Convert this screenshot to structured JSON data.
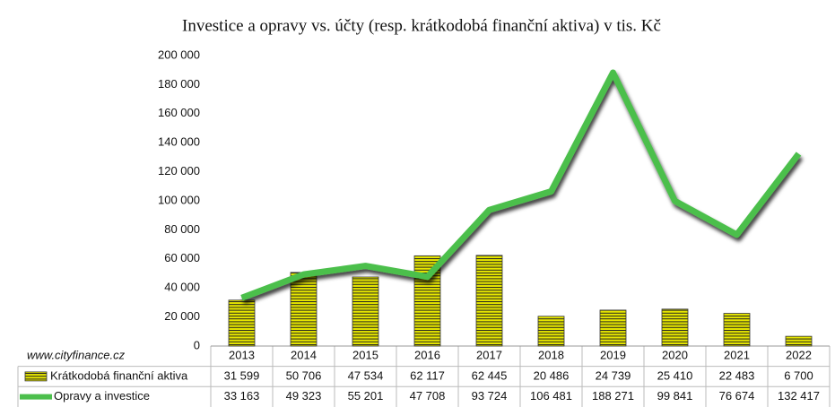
{
  "chart_data": {
    "type": "combo",
    "title": "Investice a opravy vs. účty (resp. krátkodobá finanční aktiva) v tis. Kč",
    "annotation": "www.cityfinance.cz",
    "categories": [
      "2013",
      "2014",
      "2015",
      "2016",
      "2017",
      "2018",
      "2019",
      "2020",
      "2021",
      "2022"
    ],
    "series": [
      {
        "name": "Krátkodobá finanční aktiva",
        "type": "bar",
        "color": "#e6e600",
        "values": [
          31599,
          50706,
          47534,
          62117,
          62445,
          20486,
          24739,
          25410,
          22483,
          6700
        ],
        "value_labels": [
          "31 599",
          "50 706",
          "47 534",
          "62 117",
          "62 445",
          "20 486",
          "24 739",
          "25 410",
          "22 483",
          "6 700"
        ]
      },
      {
        "name": "Opravy a investice",
        "type": "line",
        "color": "#4cbf4c",
        "values": [
          33163,
          49323,
          55201,
          47708,
          93724,
          106481,
          188271,
          99841,
          76674,
          132417
        ],
        "value_labels": [
          "33 163",
          "49 323",
          "55 201",
          "47 708",
          "93 724",
          "106 481",
          "188 271",
          "99 841",
          "76 674",
          "132 417"
        ]
      }
    ],
    "ylim": [
      0,
      200000
    ],
    "yticks": [
      0,
      {
        "value": 20000,
        "label": "20 000"
      },
      {
        "value": 40000,
        "label": "40 000"
      },
      {
        "value": 60000,
        "label": "60 000"
      },
      {
        "value": 80000,
        "label": "80 000"
      },
      {
        "value": 100000,
        "label": "100 000"
      },
      {
        "value": 120000,
        "label": "120 000"
      },
      {
        "value": 140000,
        "label": "140 000"
      },
      {
        "value": 160000,
        "label": "160 000"
      },
      {
        "value": 180000,
        "label": "180 000"
      },
      {
        "value": 200000,
        "label": "200 000"
      }
    ],
    "grid": false,
    "data_table": true
  }
}
